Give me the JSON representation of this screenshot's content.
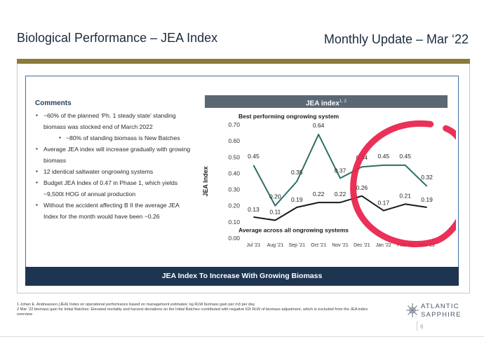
{
  "header": {
    "title": "Biological Performance – JEA Index",
    "update": "Monthly Update – Mar ‘22"
  },
  "comments": {
    "title": "Comments",
    "items": [
      "~60% of the planned ‘Ph. 1 steady state’ standing biomass was stocked end of March 2022",
      "~80% of standing biomass is New Batches",
      "Average JEA index will increase gradually with growing biomass",
      "12 identical saltwater ongrowing systems",
      "Budget JEA Index of 0.47 in Phase 1, which yields ~9,500t HOG of annual production",
      "Without the accident affecting B II the average JEA Index for the month would have been ~0.26"
    ]
  },
  "chart_header": {
    "label": "JEA index",
    "sup": "1, 2"
  },
  "chart_data": {
    "type": "line",
    "categories": [
      "Jul '21",
      "Aug '21",
      "Sep '21",
      "Oct '21",
      "Nov '21",
      "Dec '21",
      "Jan '22",
      "Feb '22",
      "Mar '22"
    ],
    "series": [
      {
        "name": "Best performing ongrowing system",
        "color": "#2e6e66",
        "values": [
          0.45,
          0.2,
          0.35,
          0.64,
          0.37,
          0.44,
          0.45,
          0.45,
          0.32
        ],
        "labels": [
          "0.45",
          "0.20",
          "0.35",
          "0.64",
          "0.37",
          "0.44",
          "0.45",
          "0.45",
          "0.32"
        ]
      },
      {
        "name": "Average across all ongrowing systems",
        "color": "#1a1a1a",
        "values": [
          0.13,
          0.11,
          0.19,
          0.22,
          0.22,
          0.26,
          0.17,
          0.21,
          0.19
        ],
        "labels": [
          "0.13",
          "0.11",
          "0.19",
          "0.22",
          "0.22",
          "0.26",
          "0.17",
          "0.21",
          "0.19"
        ]
      }
    ],
    "ylabel": "JEA Index",
    "ylim": [
      0,
      0.7
    ],
    "yticks": [
      "0.00",
      "0.10",
      "0.20",
      "0.30",
      "0.40",
      "0.50",
      "0.60",
      "0.70"
    ],
    "grid": false,
    "annotation": {
      "shape": "circle",
      "color": "#e8204a",
      "around": [
        "Jan '22",
        "Feb '22",
        "Mar '22"
      ]
    }
  },
  "banner": "JEA Index To Increase With Growing Biomass",
  "footnotes": [
    "1 Johan E. Andreassen (JEA) Index on operational performance based on management estimates: kg RLW biomass gain per m3 per day",
    "2 Mar ’22 biomass gain for Initial Batches: Elevated mortality and harvest deviations on the Initial Batches contributed with negative 62t RLW of biomass adjustment, which is excluded from the JEA index overview"
  ],
  "logo": {
    "line1": "ATLANTIC",
    "line2": "SAPPHIRE"
  },
  "page_number": "6"
}
